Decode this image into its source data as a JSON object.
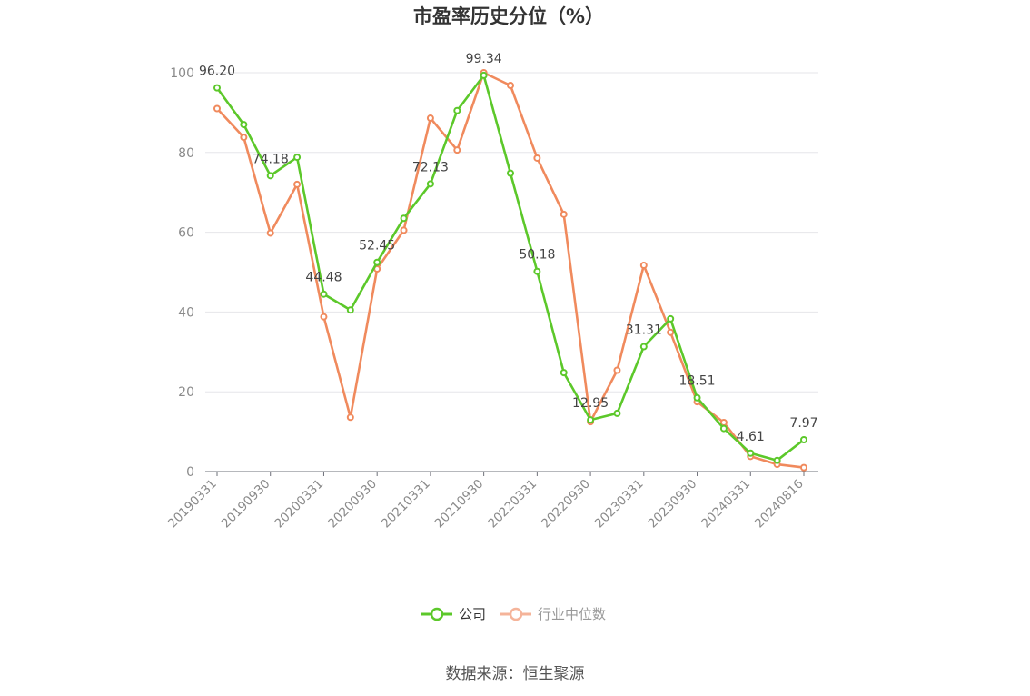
{
  "chart_data": {
    "type": "line",
    "title": "市盈率历史分位（%）",
    "ylim": [
      0,
      100
    ],
    "yticks": [
      0,
      20,
      40,
      60,
      80,
      100
    ],
    "grid": true,
    "legend_position": "bottom",
    "x": [
      "20190331",
      "20190630",
      "20190930",
      "20191231",
      "20200331",
      "20200630",
      "20200930",
      "20201231",
      "20210331",
      "20210630",
      "20210930",
      "20211231",
      "20220331",
      "20220630",
      "20220930",
      "20221231",
      "20230331",
      "20230630",
      "20230930",
      "20231231",
      "20240331",
      "20240630",
      "20240816"
    ],
    "xtick_labels": [
      "20190331",
      "20190930",
      "20200331",
      "20200930",
      "20210331",
      "20210930",
      "20220331",
      "20220930",
      "20230331",
      "20230930",
      "20240331",
      "20240816"
    ],
    "series": [
      {
        "name": "公司",
        "color": "#5cc82a",
        "values": [
          96.2,
          87.0,
          74.18,
          78.8,
          44.48,
          40.5,
          52.45,
          63.5,
          72.13,
          90.5,
          99.34,
          74.8,
          50.18,
          24.8,
          12.95,
          14.6,
          31.31,
          38.3,
          18.51,
          10.8,
          4.61,
          2.8,
          7.97
        ],
        "labels": {
          "0": "96.20",
          "2": "74.18",
          "4": "44.48",
          "6": "52.45",
          "8": "72.13",
          "10": "99.34",
          "12": "50.18",
          "14": "12.95",
          "16": "31.31",
          "18": "18.51",
          "20": "4.61",
          "22": "7.97"
        }
      },
      {
        "name": "行业中位数",
        "color": "#f08a5d",
        "values": [
          91.0,
          83.8,
          59.8,
          72.0,
          38.8,
          13.6,
          50.8,
          60.5,
          88.6,
          80.6,
          100.0,
          96.8,
          78.6,
          64.5,
          12.5,
          25.4,
          51.7,
          34.9,
          17.5,
          12.3,
          3.8,
          1.8,
          1.0
        ]
      }
    ]
  },
  "legend": [
    {
      "label": "公司",
      "color": "#5cc82a",
      "text_color": "#333333"
    },
    {
      "label": "行业中位数",
      "color": "#f5b49a",
      "text_color": "#999999"
    }
  ],
  "source": "数据来源：恒生聚源"
}
